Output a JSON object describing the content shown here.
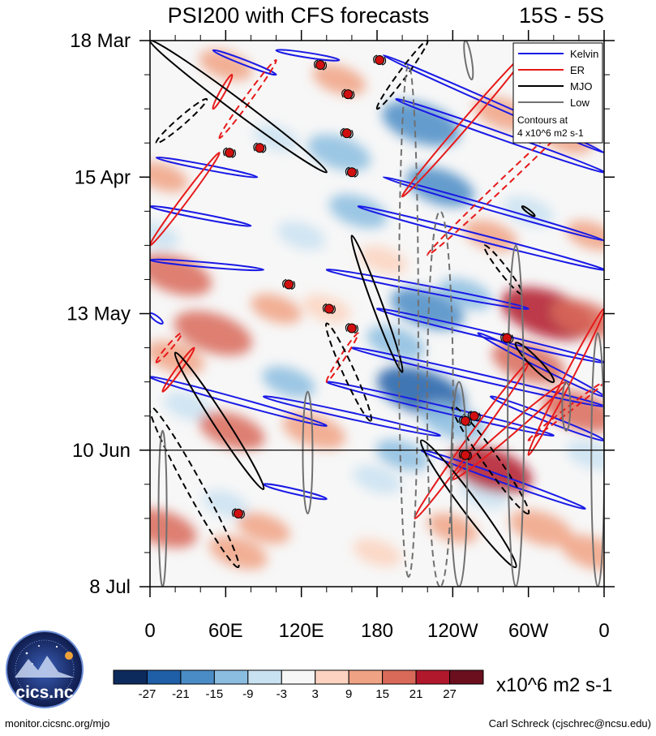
{
  "chart_data": {
    "type": "heatmap",
    "title": "PSI200 with CFS forecasts",
    "region": "15S - 5S",
    "y_labels": [
      "18 Mar",
      "15 Apr",
      "13 May",
      "10 Jun",
      "8 Jul"
    ],
    "x_labels": [
      "0",
      "60E",
      "120E",
      "180",
      "120W",
      "60W",
      "0"
    ],
    "x_range": [
      0,
      360
    ],
    "y_range_days": [
      0,
      112
    ],
    "forecast_start_day": 84,
    "legend": {
      "entries": [
        {
          "label": "Kelvin",
          "color": "#1a1ae6"
        },
        {
          "label": "ER",
          "color": "#e61a1a"
        },
        {
          "label": "MJO",
          "color": "#000000"
        },
        {
          "label": "Low",
          "color": "#707070"
        }
      ],
      "note_line1": "Contours at",
      "note_line2": "4 x10^6 m2 s-1",
      "placement": "top-right"
    },
    "colorbar": {
      "ticks": [
        "-27",
        "-21",
        "-15",
        "-9",
        "-3",
        "3",
        "9",
        "15",
        "21",
        "27"
      ],
      "colors": [
        "#0d2a5c",
        "#1f5fa8",
        "#4a8cc6",
        "#8bbde0",
        "#c9e2f1",
        "#f7f7f7",
        "#fbd3c0",
        "#f0a284",
        "#d96a5a",
        "#b2182b",
        "#6b0f1f"
      ],
      "units": "x10^6 m2 s-1"
    },
    "anomaly_blobs": [
      {
        "lon": 150,
        "day": 23,
        "v": -14
      },
      {
        "lon": 165,
        "day": 35,
        "v": -12
      },
      {
        "lon": 215,
        "day": 17,
        "v": -20
      },
      {
        "lon": 230,
        "day": 30,
        "v": -16
      },
      {
        "lon": 220,
        "day": 55,
        "v": -18
      },
      {
        "lon": 215,
        "day": 72,
        "v": -24
      },
      {
        "lon": 240,
        "day": 78,
        "v": -15
      },
      {
        "lon": 250,
        "day": 52,
        "v": -10
      },
      {
        "lon": 30,
        "day": 75,
        "v": -8
      },
      {
        "lon": 110,
        "day": 70,
        "v": -10
      },
      {
        "lon": 180,
        "day": 90,
        "v": -8
      },
      {
        "lon": 300,
        "day": 35,
        "v": -9
      },
      {
        "lon": 120,
        "day": 40,
        "v": -8
      },
      {
        "lon": 60,
        "day": 95,
        "v": -7
      },
      {
        "lon": 100,
        "day": 20,
        "v": -7
      },
      {
        "lon": 265,
        "day": 93,
        "v": -8
      },
      {
        "lon": 195,
        "day": 62,
        "v": -12
      },
      {
        "lon": 5,
        "day": 40,
        "v": -7
      },
      {
        "lon": 320,
        "day": 5,
        "v": -6
      },
      {
        "lon": 350,
        "day": 85,
        "v": -9
      },
      {
        "lon": 60,
        "day": 5,
        "v": 10
      },
      {
        "lon": 10,
        "day": 28,
        "v": 9
      },
      {
        "lon": 20,
        "day": 48,
        "v": 18
      },
      {
        "lon": 50,
        "day": 60,
        "v": 20
      },
      {
        "lon": 65,
        "day": 80,
        "v": 15
      },
      {
        "lon": 10,
        "day": 100,
        "v": 16
      },
      {
        "lon": 70,
        "day": 105,
        "v": 12
      },
      {
        "lon": 150,
        "day": 8,
        "v": 10
      },
      {
        "lon": 140,
        "day": 55,
        "v": 8
      },
      {
        "lon": 130,
        "day": 80,
        "v": 14
      },
      {
        "lon": 280,
        "day": 15,
        "v": 12
      },
      {
        "lon": 330,
        "day": 20,
        "v": 10
      },
      {
        "lon": 300,
        "day": 66,
        "v": 18
      },
      {
        "lon": 315,
        "day": 56,
        "v": 26
      },
      {
        "lon": 345,
        "day": 57,
        "v": 15
      },
      {
        "lon": 340,
        "day": 76,
        "v": 18
      },
      {
        "lon": 270,
        "day": 88,
        "v": 22
      },
      {
        "lon": 310,
        "day": 100,
        "v": 14
      },
      {
        "lon": 350,
        "day": 105,
        "v": 13
      },
      {
        "lon": 20,
        "day": 65,
        "v": 12
      },
      {
        "lon": 270,
        "day": 40,
        "v": 10
      },
      {
        "lon": 185,
        "day": 45,
        "v": 8
      },
      {
        "lon": 90,
        "day": 100,
        "v": 10
      },
      {
        "lon": 240,
        "day": 100,
        "v": 9
      },
      {
        "lon": 180,
        "day": 105,
        "v": 8
      },
      {
        "lon": 100,
        "day": 55,
        "v": 9
      },
      {
        "lon": 350,
        "day": 40,
        "v": 9
      },
      {
        "lon": 200,
        "day": 85,
        "v": -10
      }
    ],
    "contours": {
      "kelvin": [
        {
          "lon1": 0,
          "day1": 34,
          "lon2": 80,
          "day2": 38,
          "w": 3
        },
        {
          "lon1": 5,
          "day1": 24,
          "lon2": 85,
          "day2": 28,
          "w": 3
        },
        {
          "lon1": 0,
          "day1": 45,
          "lon2": 90,
          "day2": 47,
          "w": 3
        },
        {
          "lon1": 50,
          "day1": 2,
          "lon2": 100,
          "day2": 7,
          "w": 3
        },
        {
          "lon1": 100,
          "day1": 2,
          "lon2": 150,
          "day2": 4,
          "w": 3
        },
        {
          "lon1": 185,
          "day1": 3,
          "lon2": 360,
          "day2": 23,
          "w": 3
        },
        {
          "lon1": 195,
          "day1": 12,
          "lon2": 360,
          "day2": 27,
          "w": 4
        },
        {
          "lon1": 165,
          "day1": 34,
          "lon2": 360,
          "day2": 47,
          "w": 4
        },
        {
          "lon1": 185,
          "day1": 28,
          "lon2": 360,
          "day2": 41,
          "w": 3
        },
        {
          "lon1": 140,
          "day1": 47,
          "lon2": 300,
          "day2": 55,
          "w": 4
        },
        {
          "lon1": 180,
          "day1": 55,
          "lon2": 360,
          "day2": 66,
          "w": 4
        },
        {
          "lon1": 160,
          "day1": 63,
          "lon2": 360,
          "day2": 75,
          "w": 4
        },
        {
          "lon1": 0,
          "day1": 69,
          "lon2": 140,
          "day2": 79,
          "w": 4
        },
        {
          "lon1": 90,
          "day1": 73,
          "lon2": 230,
          "day2": 81,
          "w": 4
        },
        {
          "lon1": 140,
          "day1": 70,
          "lon2": 320,
          "day2": 81,
          "w": 4
        },
        {
          "lon1": 260,
          "day1": 60,
          "lon2": 360,
          "day2": 73,
          "w": 4
        },
        {
          "lon1": 270,
          "day1": 73,
          "lon2": 360,
          "day2": 82,
          "w": 4
        },
        {
          "lon1": 215,
          "day1": 84,
          "lon2": 345,
          "day2": 96,
          "w": 4
        },
        {
          "lon1": 90,
          "day1": 91,
          "lon2": 140,
          "day2": 94,
          "w": 3
        },
        {
          "lon1": 0,
          "day1": 56,
          "lon2": 10,
          "day2": 58,
          "w": 3
        }
      ],
      "er": [
        {
          "lon1": 300,
          "day1": 2,
          "lon2": 200,
          "day2": 32,
          "w": 5,
          "dash": false
        },
        {
          "lon1": 350,
          "day1": 12,
          "lon2": 220,
          "day2": 44,
          "w": 5,
          "dash": true
        },
        {
          "lon1": 100,
          "day1": 4,
          "lon2": 55,
          "day2": 20,
          "w": 4,
          "dash": true
        },
        {
          "lon1": 65,
          "day1": 7,
          "lon2": 50,
          "day2": 14,
          "w": 3,
          "dash": false
        },
        {
          "lon1": 55,
          "day1": 23,
          "lon2": 0,
          "day2": 42,
          "w": 4,
          "dash": false
        },
        {
          "lon1": 25,
          "day1": 60,
          "lon2": 5,
          "day2": 66,
          "w": 3,
          "dash": true
        },
        {
          "lon1": 35,
          "day1": 63,
          "lon2": 10,
          "day2": 72,
          "w": 3,
          "dash": false
        },
        {
          "lon1": 165,
          "day1": 60,
          "lon2": 140,
          "day2": 70,
          "w": 3,
          "dash": true
        },
        {
          "lon1": 360,
          "day1": 55,
          "lon2": 300,
          "day2": 85,
          "w": 5,
          "dash": false
        },
        {
          "lon1": 330,
          "day1": 70,
          "lon2": 240,
          "day2": 90,
          "w": 6,
          "dash": false
        },
        {
          "lon1": 300,
          "day1": 66,
          "lon2": 210,
          "day2": 98,
          "w": 6,
          "dash": false
        },
        {
          "lon1": 360,
          "day1": 70,
          "lon2": 300,
          "day2": 82,
          "w": 3,
          "dash": true
        }
      ],
      "mjo": [
        {
          "lon1": 0,
          "day1": 0,
          "lon2": 140,
          "day2": 27,
          "w": 8,
          "dash": false
        },
        {
          "lon1": 45,
          "day1": 12,
          "lon2": 5,
          "day2": 21,
          "w": 5,
          "dash": true
        },
        {
          "lon1": 220,
          "day1": 0,
          "lon2": 180,
          "day2": 14,
          "w": 5,
          "dash": true
        },
        {
          "lon1": 160,
          "day1": 40,
          "lon2": 200,
          "day2": 68,
          "w": 6,
          "dash": false
        },
        {
          "lon1": 140,
          "day1": 58,
          "lon2": 175,
          "day2": 78,
          "w": 7,
          "dash": true
        },
        {
          "lon1": 20,
          "day1": 64,
          "lon2": 90,
          "day2": 92,
          "w": 8,
          "dash": false
        },
        {
          "lon1": 0,
          "day1": 75,
          "lon2": 70,
          "day2": 108,
          "w": 10,
          "dash": true
        },
        {
          "lon1": 240,
          "day1": 75,
          "lon2": 300,
          "day2": 97,
          "w": 9,
          "dash": true
        },
        {
          "lon1": 215,
          "day1": 82,
          "lon2": 290,
          "day2": 108,
          "w": 10,
          "dash": false
        },
        {
          "lon1": 290,
          "day1": 62,
          "lon2": 320,
          "day2": 70,
          "w": 6,
          "dash": false
        },
        {
          "lon1": 265,
          "day1": 42,
          "lon2": 295,
          "day2": 52,
          "w": 5,
          "dash": true
        },
        {
          "lon1": 295,
          "day1": 34,
          "lon2": 305,
          "day2": 36,
          "w": 2,
          "dash": false
        }
      ],
      "low": [
        {
          "lon1": 205,
          "day1": 5,
          "lon2": 205,
          "day2": 110,
          "w": 12,
          "dash": true
        },
        {
          "lon1": 230,
          "day1": 35,
          "lon2": 230,
          "day2": 112,
          "w": 16,
          "dash": true
        },
        {
          "lon1": 245,
          "day1": 70,
          "lon2": 245,
          "day2": 112,
          "w": 10,
          "dash": false
        },
        {
          "lon1": 125,
          "day1": 72,
          "lon2": 125,
          "day2": 97,
          "w": 6,
          "dash": false
        },
        {
          "lon1": 290,
          "day1": 42,
          "lon2": 290,
          "day2": 112,
          "w": 10,
          "dash": false
        },
        {
          "lon1": 355,
          "day1": 60,
          "lon2": 355,
          "day2": 112,
          "w": 8,
          "dash": false
        },
        {
          "lon1": 330,
          "day1": 70,
          "lon2": 330,
          "day2": 80,
          "w": 5,
          "dash": false
        },
        {
          "lon1": 10,
          "day1": 80,
          "lon2": 10,
          "day2": 112,
          "w": 5,
          "dash": false
        },
        {
          "lon1": 250,
          "day1": 0,
          "lon2": 255,
          "day2": 8,
          "w": 4,
          "dash": false
        }
      ]
    },
    "storm_markers": [
      {
        "lon": 135,
        "day": 5
      },
      {
        "lon": 182,
        "day": 4
      },
      {
        "lon": 157,
        "day": 11
      },
      {
        "lon": 156,
        "day": 19
      },
      {
        "lon": 160,
        "day": 27
      },
      {
        "lon": 87,
        "day": 22
      },
      {
        "lon": 63,
        "day": 23
      },
      {
        "lon": 110,
        "day": 50
      },
      {
        "lon": 142,
        "day": 55
      },
      {
        "lon": 160,
        "day": 59
      },
      {
        "lon": 283,
        "day": 61
      },
      {
        "lon": 250,
        "day": 85
      },
      {
        "lon": 257,
        "day": 77
      },
      {
        "lon": 70,
        "day": 97
      },
      {
        "lon": 250,
        "day": 78
      }
    ]
  },
  "footer": {
    "left": "monitor.cicsnc.org/mjo",
    "right": "Carl Schreck (cjschrec@ncsu.edu)"
  },
  "logo": {
    "text": "cics.nc",
    "ring_text": "Cooperative Institute for Climate and Satellites"
  }
}
